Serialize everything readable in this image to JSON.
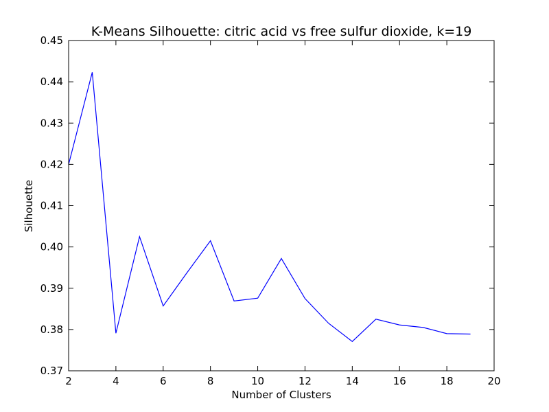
{
  "chart_data": {
    "type": "line",
    "title": "K-Means Silhouette: citric acid vs free sulfur dioxide, k=19",
    "xlabel": "Number of Clusters",
    "ylabel": "Silhouette",
    "xlim": [
      2,
      20
    ],
    "ylim": [
      0.37,
      0.45
    ],
    "x_ticks": [
      "2",
      "4",
      "6",
      "8",
      "10",
      "12",
      "14",
      "16",
      "18",
      "20"
    ],
    "y_ticks": [
      "0.37",
      "0.38",
      "0.39",
      "0.40",
      "0.41",
      "0.42",
      "0.43",
      "0.44",
      "0.45"
    ],
    "grid": false,
    "legend": "none",
    "series": [
      {
        "color": "#0000ff",
        "x": [
          2,
          3,
          4,
          5,
          6,
          7,
          8,
          9,
          10,
          11,
          12,
          13,
          14,
          15,
          16,
          17,
          18,
          19
        ],
        "values": [
          0.42,
          0.4423,
          0.3791,
          0.4025,
          0.3857,
          0.3937,
          0.4015,
          0.3869,
          0.3876,
          0.3972,
          0.3875,
          0.3815,
          0.3771,
          0.3825,
          0.3811,
          0.3805,
          0.379,
          0.3789
        ]
      }
    ]
  }
}
